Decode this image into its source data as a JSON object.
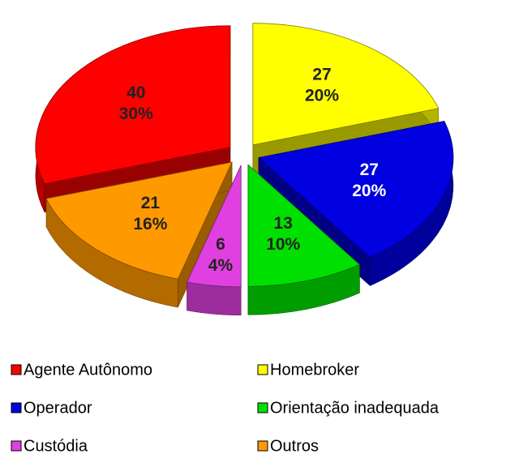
{
  "chart_data": {
    "type": "pie3d",
    "categories": [
      "Agente Autônomo",
      "Homebroker",
      "Operador",
      "Orientação inadequada",
      "Custódia",
      "Outros"
    ],
    "values": [
      40,
      27,
      27,
      13,
      6,
      21
    ],
    "percent_labels": [
      "30%",
      "20%",
      "20%",
      "10%",
      "4%",
      "16%"
    ],
    "colors": [
      "#ff0000",
      "#ffff00",
      "#0000e0",
      "#00e000",
      "#e040e0",
      "#ff9900"
    ],
    "label_colors": [
      "#222222",
      "#222222",
      "#ffffff",
      "#222222",
      "#222222",
      "#222222"
    ],
    "legend": "bottom"
  }
}
